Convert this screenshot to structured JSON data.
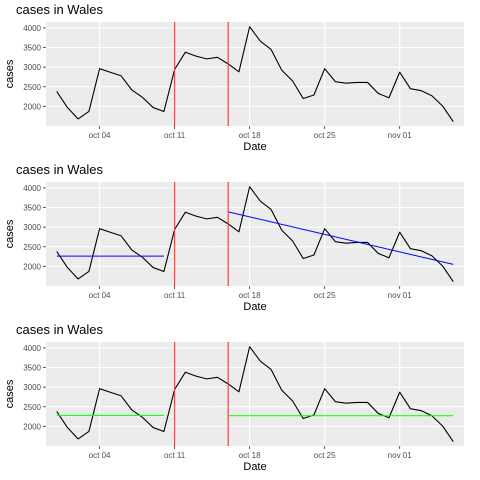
{
  "chart_data": [
    {
      "type": "line",
      "title": "cases in Wales",
      "xlabel": "Date",
      "ylabel": "cases",
      "x_tick_labels": [
        "oct 04",
        "oct 11",
        "oct 18",
        "oct 25",
        "nov 01"
      ],
      "y_tick_labels": [
        "2000",
        "2500",
        "3000",
        "3500",
        "4000"
      ],
      "grid": true,
      "overlay": "none"
    },
    {
      "type": "line",
      "title": "cases in Wales",
      "xlabel": "Date",
      "ylabel": "cases",
      "x_tick_labels": [
        "oct 04",
        "oct 11",
        "oct 18",
        "oct 25",
        "nov 01"
      ],
      "y_tick_labels": [
        "2000",
        "2500",
        "3000",
        "3500",
        "4000"
      ],
      "grid": true,
      "overlay": "trend"
    },
    {
      "type": "line",
      "title": "cases in Wales",
      "xlabel": "Date",
      "ylabel": "cases",
      "x_tick_labels": [
        "oct 04",
        "oct 11",
        "oct 18",
        "oct 25",
        "nov 01"
      ],
      "y_tick_labels": [
        "2000",
        "2500",
        "3000",
        "3500",
        "4000"
      ],
      "grid": true,
      "overlay": "mean"
    }
  ],
  "shared": {
    "x_dates": [
      "2020-09-30",
      "2020-10-01",
      "2020-10-02",
      "2020-10-03",
      "2020-10-04",
      "2020-10-05",
      "2020-10-06",
      "2020-10-07",
      "2020-10-08",
      "2020-10-09",
      "2020-10-10",
      "2020-10-11",
      "2020-10-12",
      "2020-10-13",
      "2020-10-14",
      "2020-10-15",
      "2020-10-16",
      "2020-10-17",
      "2020-10-18",
      "2020-10-19",
      "2020-10-20",
      "2020-10-21",
      "2020-10-22",
      "2020-10-23",
      "2020-10-24",
      "2020-10-25",
      "2020-10-26",
      "2020-10-27",
      "2020-10-28",
      "2020-10-29",
      "2020-10-30",
      "2020-10-31",
      "2020-11-01",
      "2020-11-02",
      "2020-11-03",
      "2020-11-04",
      "2020-11-05",
      "2020-11-06"
    ],
    "cases": [
      2380,
      1970,
      1680,
      1870,
      2960,
      2870,
      2780,
      2420,
      2230,
      1970,
      1870,
      2940,
      3380,
      3280,
      3210,
      3250,
      3080,
      2880,
      4030,
      3660,
      3450,
      2920,
      2650,
      2200,
      2290,
      2960,
      2630,
      2590,
      2610,
      2610,
      2330,
      2220,
      2870,
      2450,
      2400,
      2270,
      2010,
      1610
    ],
    "x_range": [
      "2020-09-29",
      "2020-11-07"
    ],
    "y_range": [
      1500,
      4150
    ],
    "x_ticks": [
      "2020-10-04",
      "2020-10-11",
      "2020-10-18",
      "2020-10-25",
      "2020-11-01"
    ],
    "y_ticks": [
      2000,
      2500,
      3000,
      3500,
      4000
    ],
    "vlines": [
      "2020-10-11",
      "2020-10-16"
    ],
    "trend_segments": [
      {
        "x": [
          "2020-09-30",
          "2020-10-10"
        ],
        "y": [
          2260,
          2260
        ]
      },
      {
        "x": [
          "2020-10-16",
          "2020-11-06"
        ],
        "y": [
          3390,
          2050
        ]
      }
    ],
    "mean_segments": [
      {
        "x": [
          "2020-09-30",
          "2020-10-10"
        ],
        "y": [
          2280,
          2280
        ]
      },
      {
        "x": [
          "2020-10-16",
          "2020-11-06"
        ],
        "y": [
          2270,
          2270
        ]
      }
    ],
    "colors": {
      "panel_bg": "#ebebeb",
      "grid_major": "#ffffff",
      "grid_minor": "#f2f2f2",
      "series": "#000000",
      "vline": "#ff3b3b",
      "trend": "#0000ff",
      "mean": "#00ff00"
    }
  }
}
